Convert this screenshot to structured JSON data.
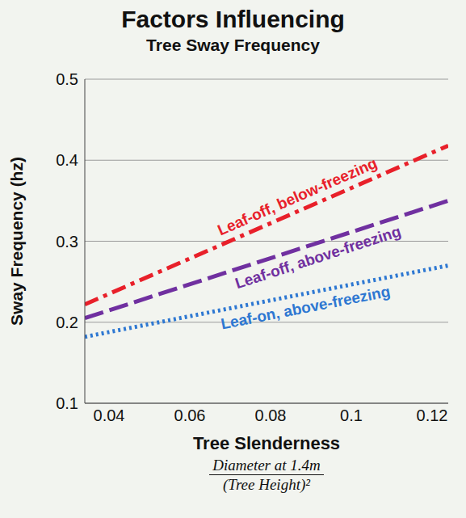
{
  "chart_data": {
    "type": "line",
    "title": "Factors Influencing",
    "subtitle": "Tree Sway Frequency",
    "x_label": "Tree Slenderness",
    "x_label_formula": {
      "numerator": "Diameter at 1.4m",
      "denominator": "(Tree Height)²"
    },
    "y_label": "Sway Frequency (hz)",
    "x": [
      0.034,
      0.124
    ],
    "series": [
      {
        "name": "Leaf-off, below-freezing",
        "color": "#e8202a",
        "line_style": "dashdot",
        "values": [
          0.222,
          0.418
        ]
      },
      {
        "name": "Leaf-off, above-freezing",
        "color": "#7030a0",
        "line_style": "dashed",
        "values": [
          0.205,
          0.35
        ]
      },
      {
        "name": "Leaf-on, above-freezing",
        "color": "#2e78d2",
        "line_style": "dotted",
        "values": [
          0.182,
          0.27
        ]
      }
    ],
    "xlim": [
      0.034,
      0.124
    ],
    "xticks": [
      0.04,
      0.06,
      0.08,
      0.1,
      0.12
    ],
    "ylim": [
      0.1,
      0.5
    ],
    "yticks": [
      0.1,
      0.2,
      0.3,
      0.4,
      0.5
    ],
    "grid": true
  }
}
